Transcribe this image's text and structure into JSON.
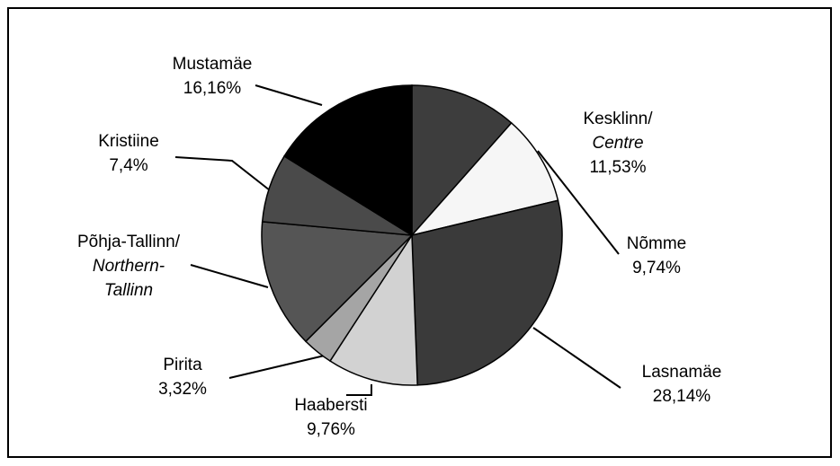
{
  "chart_data": {
    "type": "pie",
    "categories": [
      [
        "Kesklinn/",
        "Centre"
      ],
      [
        "Nõmme"
      ],
      [
        "Lasnamäe"
      ],
      [
        "Haabersti"
      ],
      [
        "Pirita"
      ],
      [
        "Põhja-Tallinn/",
        "Northern-",
        "Tallinn"
      ],
      [
        "Kristiine"
      ],
      [
        "Mustamäe"
      ]
    ],
    "values": [
      11.53,
      9.74,
      28.14,
      9.76,
      3.32,
      13.95,
      7.4,
      16.16
    ],
    "value_labels": [
      "11,53%",
      "9,74%",
      "28,14%",
      "9,76%",
      "3,32%",
      null,
      "7,4%",
      "16,16%"
    ],
    "colors": [
      "#3d3d3d",
      "#f6f6f6",
      "#3a3a3a",
      "#d2d2d2",
      "#a5a5a5",
      "#555555",
      "#4a4a4a",
      "#000000"
    ]
  }
}
